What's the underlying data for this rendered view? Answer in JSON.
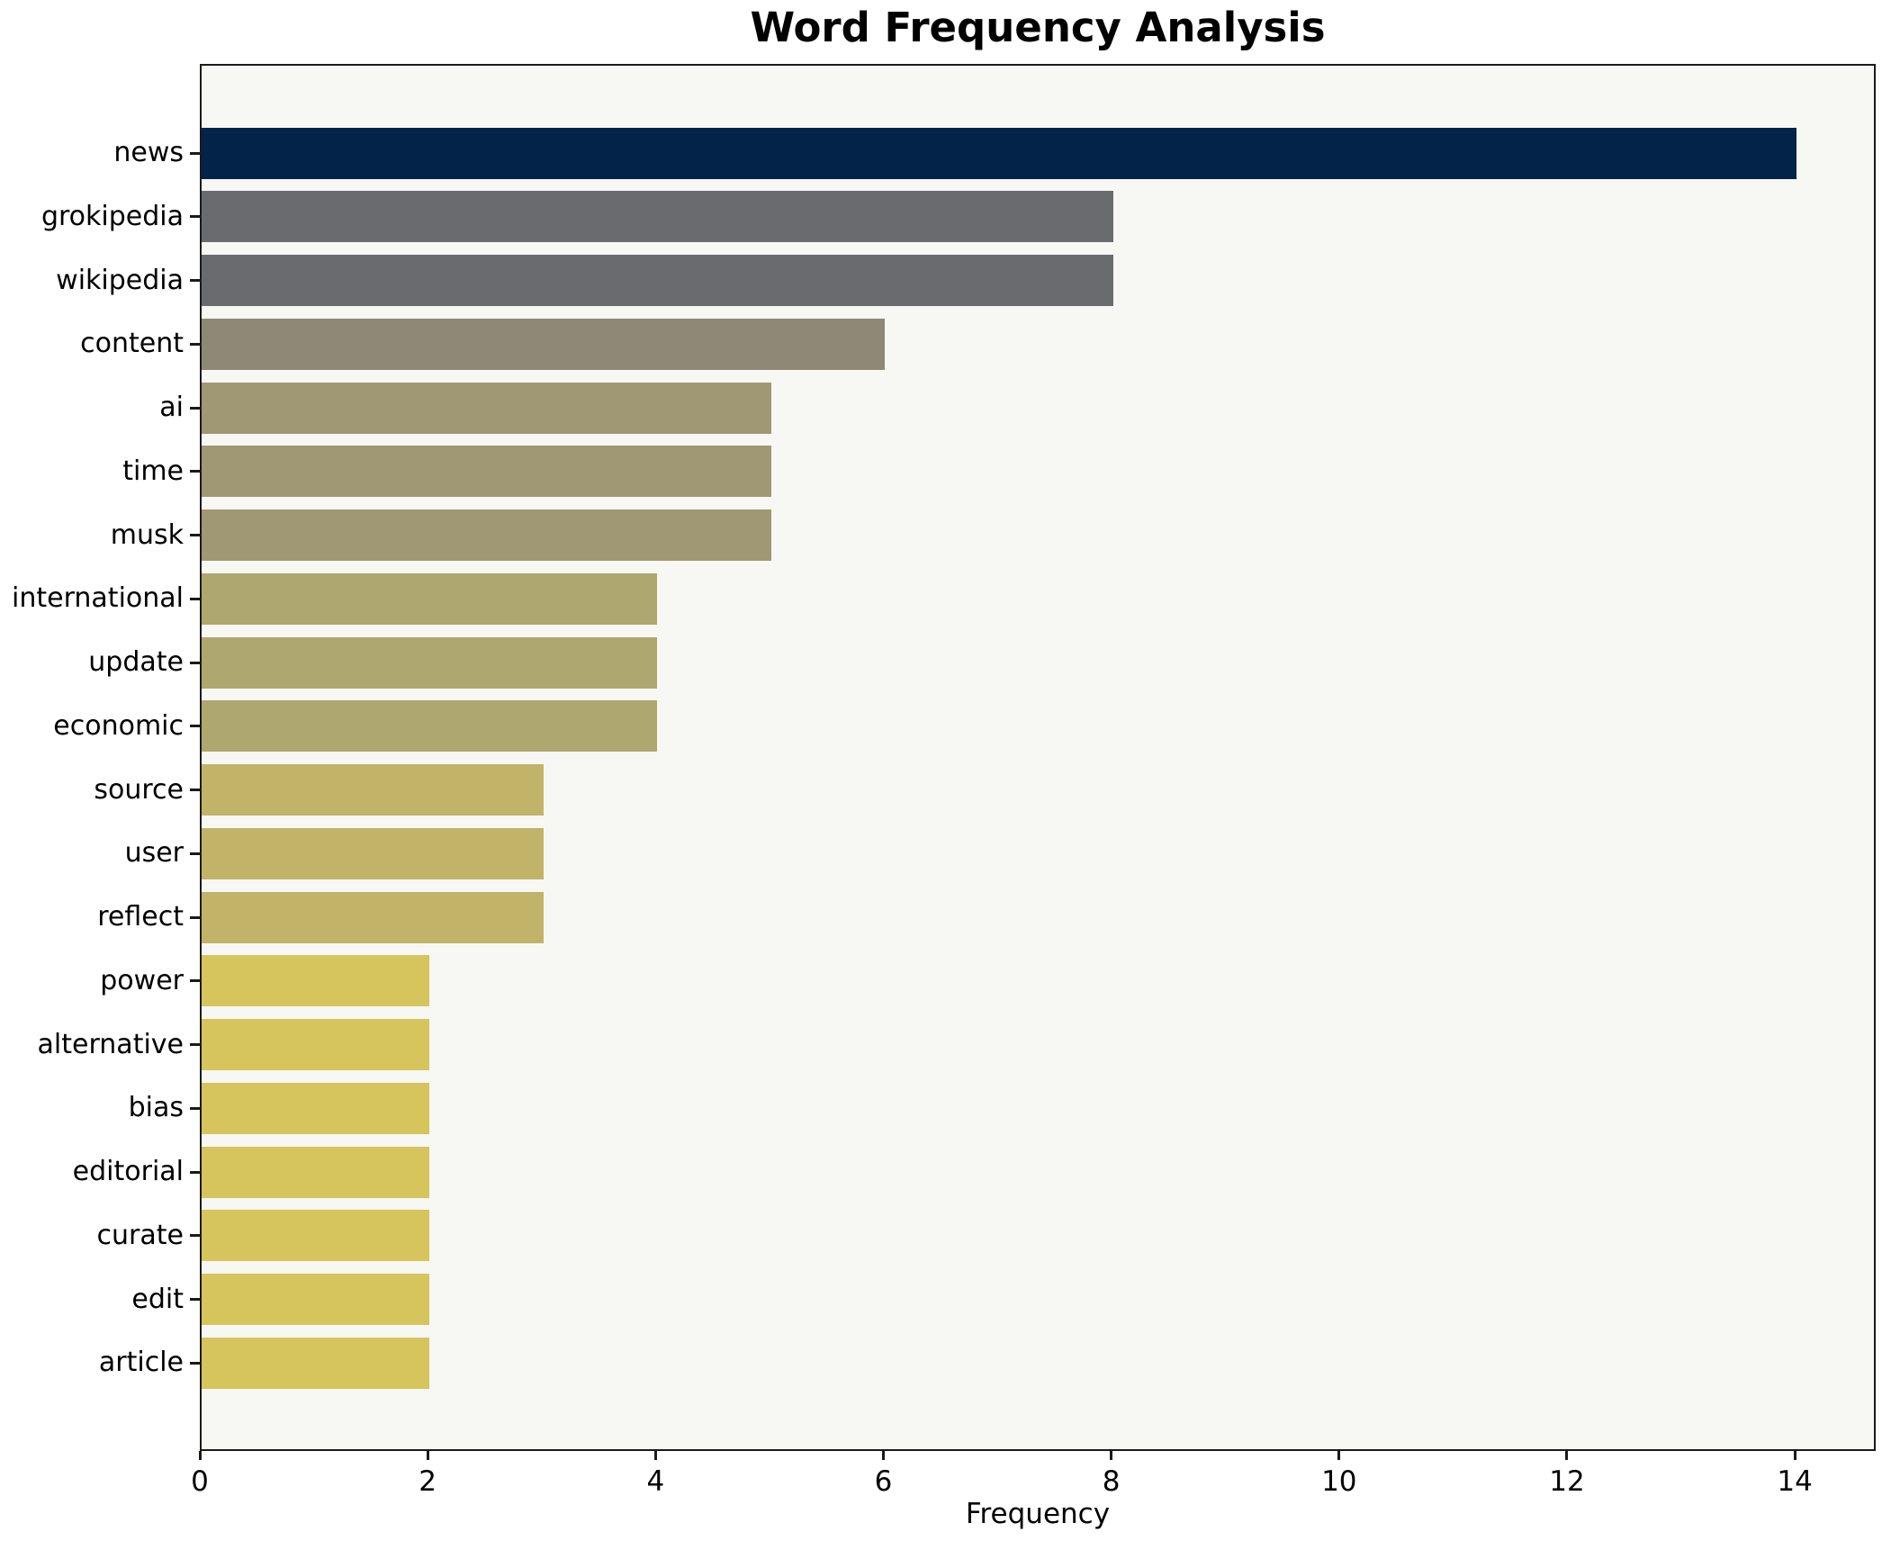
{
  "chart_data": {
    "type": "bar",
    "orientation": "horizontal",
    "title": "Word Frequency Analysis",
    "xlabel": "Frequency",
    "ylabel": "",
    "categories": [
      "news",
      "grokipedia",
      "wikipedia",
      "content",
      "ai",
      "time",
      "musk",
      "international",
      "update",
      "economic",
      "source",
      "user",
      "reflect",
      "power",
      "alternative",
      "bias",
      "editorial",
      "curate",
      "edit",
      "article"
    ],
    "values": [
      14,
      8,
      8,
      6,
      5,
      5,
      5,
      4,
      4,
      4,
      3,
      3,
      3,
      2,
      2,
      2,
      2,
      2,
      2,
      2
    ],
    "bar_colors": [
      "#032349",
      "#6a6b6e",
      "#6a6b6e",
      "#8e8877",
      "#a09875",
      "#a09875",
      "#a09875",
      "#afa770",
      "#afa770",
      "#afa770",
      "#c1b468",
      "#c1b468",
      "#c1b468",
      "#d6c45c",
      "#d6c45c",
      "#d6c45c",
      "#d6c45c",
      "#d6c45c",
      "#d6c45c",
      "#d6c45c"
    ],
    "xlim": [
      0,
      14.71
    ],
    "x_ticks": [
      0,
      2,
      4,
      6,
      8,
      10,
      12,
      14
    ],
    "x_tick_labels": [
      "0",
      "2",
      "4",
      "6",
      "8",
      "10",
      "12",
      "14"
    ],
    "grid": false,
    "legend": "none"
  },
  "colors": {
    "figure_bg": "#ffffff",
    "plot_bg": "#f7f7f4",
    "spine": "#1a1a1a",
    "text": "#000000"
  }
}
